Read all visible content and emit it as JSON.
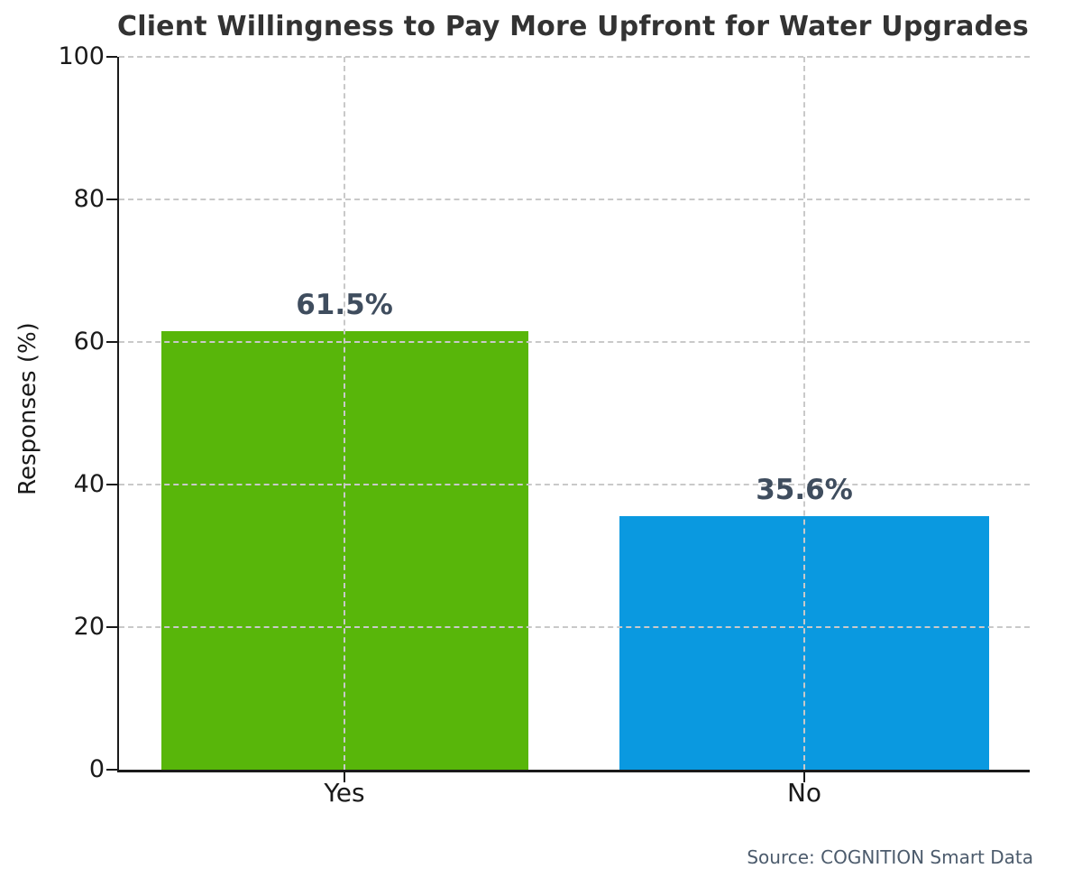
{
  "chart_data": {
    "type": "bar",
    "title": "Client Willingness to Pay More Upfront for Water Upgrades",
    "categories": [
      "Yes",
      "No"
    ],
    "values": [
      61.5,
      35.6
    ],
    "value_labels": [
      "61.5%",
      "35.6%"
    ],
    "xlabel": "",
    "ylabel": "Responses (%)",
    "ylim": [
      0,
      100
    ],
    "yticks": [
      0,
      20,
      40,
      60,
      80,
      100
    ],
    "grid": "dashed-horizontal-and-vertical-at-bar-centers",
    "legend": "none",
    "source": "Source: COGNITION Smart Data",
    "colors": {
      "bars": [
        "#58b60a",
        "#0a99e0"
      ],
      "title": "#333333",
      "value_label": "#3f4d5e",
      "axis": "#1a1a1a",
      "tick_label": "#1a1a1a",
      "grid": "#c9c9c9",
      "source": "#4c5b6c",
      "background": "#ffffff"
    }
  }
}
